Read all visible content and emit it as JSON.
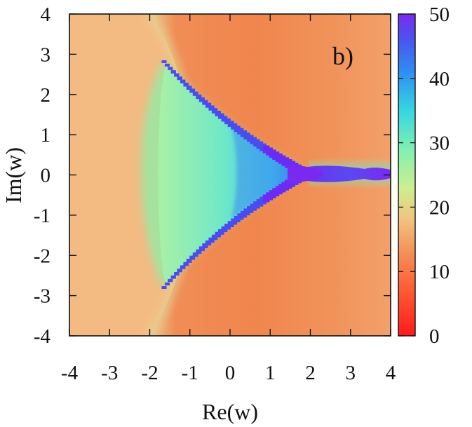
{
  "chart_data": {
    "type": "heatmap",
    "panel_label": "b)",
    "xlabel": "Re(w)",
    "ylabel": "Im(w)",
    "xlim": [
      -4,
      4
    ],
    "ylim": [
      -4,
      4
    ],
    "x_ticks": [
      -4,
      -3,
      -2,
      -1,
      0,
      1,
      2,
      3,
      4
    ],
    "y_ticks": [
      -4,
      -3,
      -2,
      -1,
      0,
      1,
      2,
      3,
      4
    ],
    "colorbar": {
      "range": [
        0,
        50
      ],
      "ticks": [
        0,
        10,
        20,
        30,
        40,
        50
      ],
      "colormap": [
        "#ff1a1a",
        "#ff6a3a",
        "#f5a86a",
        "#d6e88c",
        "#7ff0b2",
        "#38d0e6",
        "#3a7ef2",
        "#5a3ff0",
        "#7a2af0"
      ]
    },
    "background_value_left": 14,
    "background_value_right": 10,
    "colors": {
      "background_left": "#f5b57c",
      "background_right": "#f28a50",
      "interior_cyan": "#6ee8c8",
      "boundary_purple": "#7a2cf2"
    }
  }
}
